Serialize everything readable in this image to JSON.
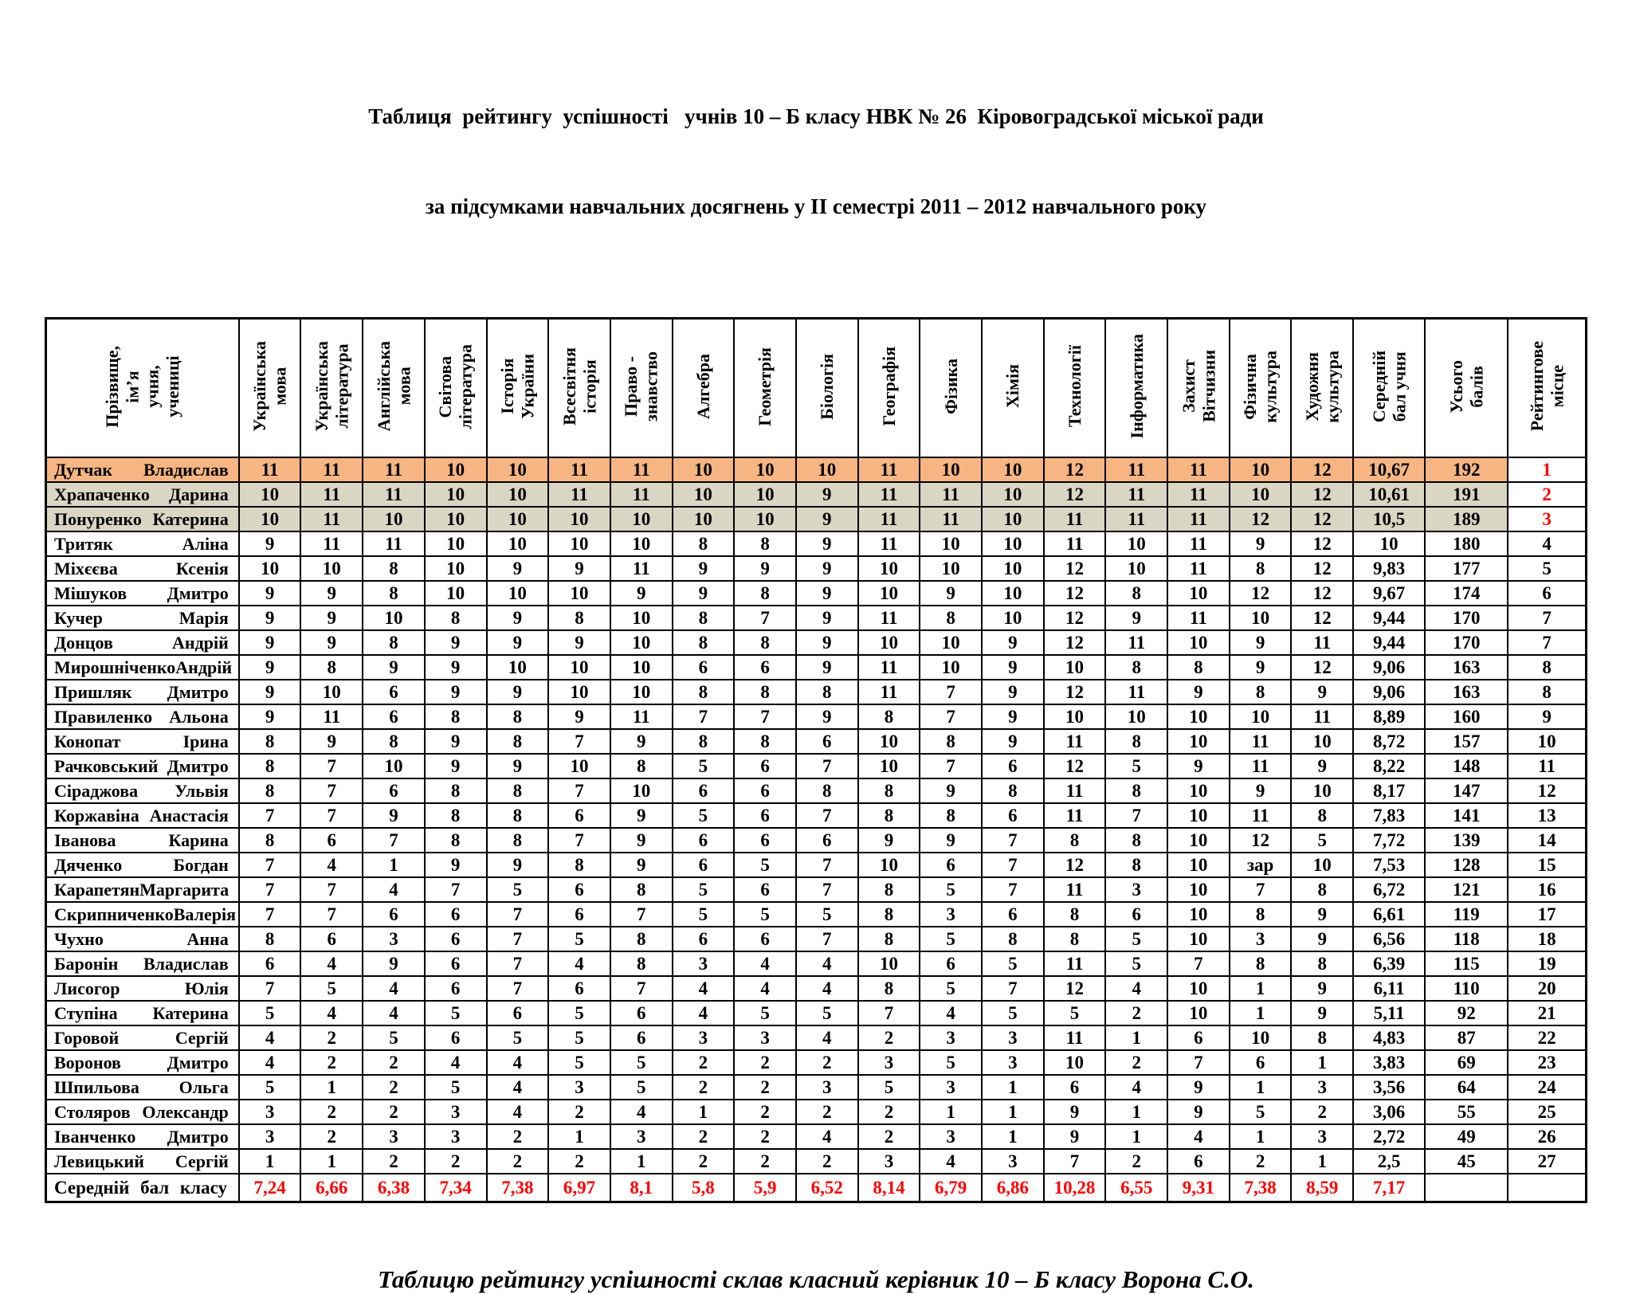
{
  "title_line1": "Таблиця  рейтингу  успішності   учнів 10 – Б класу НВК № 26  Кіровоградської міської ради",
  "title_line2": "за підсумками навчальних досягнень у ІІ семестрі 2011 – 2012 навчального року",
  "caption": "Таблицю рейтингу успішності склав класний керівник 10 – Б класу Ворона С.О.",
  "colors": {
    "first_place_row": "#F6B582",
    "second_third_place_row": "#D9D6C4",
    "accent_red": "#FF0000"
  },
  "table": {
    "name_header": "Прізвище,\nім’я\nучня,\nучениці",
    "subject_headers": [
      "Українська\nмова",
      "Українська\nлітература",
      "Англійська\nмова",
      "Світова\nлітература",
      "Історія\nУкраїни",
      "Всесвітня\nісторія",
      "Право -\nзнавство",
      "Алгебра",
      "Геометрія",
      "Біологія",
      "Географія",
      "Фізика",
      "Хімія",
      "Технології",
      "Інформатика",
      "Захист\nВітчизни",
      "Фізична\nкультура",
      "Художня\nкультура"
    ],
    "avg_header": "Середній\nбал учня",
    "total_header": "Усього\nбалів",
    "rank_header": "Рейтингове\nмісце",
    "rows": [
      {
        "name_last": "Дутчак",
        "name_first": "Владислав",
        "grades": [
          "11",
          "11",
          "11",
          "10",
          "10",
          "11",
          "11",
          "10",
          "10",
          "10",
          "11",
          "10",
          "10",
          "12",
          "11",
          "11",
          "10",
          "12"
        ],
        "avg": "10,67",
        "total": "192",
        "rank": "1",
        "highlight": "gold",
        "rank_red": true
      },
      {
        "name_last": "Храпаченко",
        "name_first": "Дарина",
        "grades": [
          "10",
          "11",
          "11",
          "10",
          "10",
          "11",
          "11",
          "10",
          "10",
          "9",
          "11",
          "11",
          "10",
          "12",
          "11",
          "11",
          "10",
          "12"
        ],
        "avg": "10,61",
        "total": "191",
        "rank": "2",
        "highlight": "silver",
        "rank_red": true
      },
      {
        "name_last": "Понуренко",
        "name_first": "Катерина",
        "grades": [
          "10",
          "11",
          "10",
          "10",
          "10",
          "10",
          "10",
          "10",
          "10",
          "9",
          "11",
          "11",
          "10",
          "11",
          "11",
          "11",
          "12",
          "12"
        ],
        "avg": "10,5",
        "total": "189",
        "rank": "3",
        "highlight": "silver",
        "rank_red": true
      },
      {
        "name_last": "Тритяк",
        "name_first": "Аліна",
        "grades": [
          "9",
          "11",
          "11",
          "10",
          "10",
          "10",
          "10",
          "8",
          "8",
          "9",
          "11",
          "10",
          "10",
          "11",
          "10",
          "11",
          "9",
          "12"
        ],
        "avg": "10",
        "total": "180",
        "rank": "4",
        "highlight": "",
        "rank_red": false
      },
      {
        "name_last": "Міхєєва",
        "name_first": "Ксенія",
        "grades": [
          "10",
          "10",
          "8",
          "10",
          "9",
          "9",
          "11",
          "9",
          "9",
          "9",
          "10",
          "10",
          "10",
          "12",
          "10",
          "11",
          "8",
          "12"
        ],
        "avg": "9,83",
        "total": "177",
        "rank": "5",
        "highlight": "",
        "rank_red": false
      },
      {
        "name_last": "Мішуков",
        "name_first": "Дмитро",
        "grades": [
          "9",
          "9",
          "8",
          "10",
          "10",
          "10",
          "9",
          "9",
          "8",
          "9",
          "10",
          "9",
          "10",
          "12",
          "8",
          "10",
          "12",
          "12"
        ],
        "avg": "9,67",
        "total": "174",
        "rank": "6",
        "highlight": "",
        "rank_red": false
      },
      {
        "name_last": "Кучер",
        "name_first": "Марія",
        "grades": [
          "9",
          "9",
          "10",
          "8",
          "9",
          "8",
          "10",
          "8",
          "7",
          "9",
          "11",
          "8",
          "10",
          "12",
          "9",
          "11",
          "10",
          "12"
        ],
        "avg": "9,44",
        "total": "170",
        "rank": "7",
        "highlight": "",
        "rank_red": false
      },
      {
        "name_last": "Донцов",
        "name_first": "Андрій",
        "grades": [
          "9",
          "9",
          "8",
          "9",
          "9",
          "9",
          "10",
          "8",
          "8",
          "9",
          "10",
          "10",
          "9",
          "12",
          "11",
          "10",
          "9",
          "11"
        ],
        "avg": "9,44",
        "total": "170",
        "rank": "7",
        "highlight": "",
        "rank_red": false
      },
      {
        "name_last": "Мирошніченко",
        "name_first": "Андрій",
        "grades": [
          "9",
          "8",
          "9",
          "9",
          "10",
          "10",
          "10",
          "6",
          "6",
          "9",
          "11",
          "10",
          "9",
          "10",
          "8",
          "8",
          "9",
          "12"
        ],
        "avg": "9,06",
        "total": "163",
        "rank": "8",
        "highlight": "",
        "rank_red": false
      },
      {
        "name_last": "Пришляк",
        "name_first": "Дмитро",
        "grades": [
          "9",
          "10",
          "6",
          "9",
          "9",
          "10",
          "10",
          "8",
          "8",
          "8",
          "11",
          "7",
          "9",
          "12",
          "11",
          "9",
          "8",
          "9"
        ],
        "avg": "9,06",
        "total": "163",
        "rank": "8",
        "highlight": "",
        "rank_red": false
      },
      {
        "name_last": "Правиленко",
        "name_first": "Альона",
        "grades": [
          "9",
          "11",
          "6",
          "8",
          "8",
          "9",
          "11",
          "7",
          "7",
          "9",
          "8",
          "7",
          "9",
          "10",
          "10",
          "10",
          "10",
          "11"
        ],
        "avg": "8,89",
        "total": "160",
        "rank": "9",
        "highlight": "",
        "rank_red": false
      },
      {
        "name_last": "Конопат",
        "name_first": "Ірина",
        "grades": [
          "8",
          "9",
          "8",
          "9",
          "8",
          "7",
          "9",
          "8",
          "8",
          "6",
          "10",
          "8",
          "9",
          "11",
          "8",
          "10",
          "11",
          "10"
        ],
        "avg": "8,72",
        "total": "157",
        "rank": "10",
        "highlight": "",
        "rank_red": false
      },
      {
        "name_last": "Рачковський",
        "name_first": "Дмитро",
        "grades": [
          "8",
          "7",
          "10",
          "9",
          "9",
          "10",
          "8",
          "5",
          "6",
          "7",
          "10",
          "7",
          "6",
          "12",
          "5",
          "9",
          "11",
          "9"
        ],
        "avg": "8,22",
        "total": "148",
        "rank": "11",
        "highlight": "",
        "rank_red": false
      },
      {
        "name_last": "Сіраджова",
        "name_first": "Ульвія",
        "grades": [
          "8",
          "7",
          "6",
          "8",
          "8",
          "7",
          "10",
          "6",
          "6",
          "8",
          "8",
          "9",
          "8",
          "11",
          "8",
          "10",
          "9",
          "10"
        ],
        "avg": "8,17",
        "total": "147",
        "rank": "12",
        "highlight": "",
        "rank_red": false
      },
      {
        "name_last": "Коржавіна",
        "name_first": "Анастасія",
        "grades": [
          "7",
          "7",
          "9",
          "8",
          "8",
          "6",
          "9",
          "5",
          "6",
          "7",
          "8",
          "8",
          "6",
          "11",
          "7",
          "10",
          "11",
          "8"
        ],
        "avg": "7,83",
        "total": "141",
        "rank": "13",
        "highlight": "",
        "rank_red": false
      },
      {
        "name_last": "Іванова",
        "name_first": "Карина",
        "grades": [
          "8",
          "6",
          "7",
          "8",
          "8",
          "7",
          "9",
          "6",
          "6",
          "6",
          "9",
          "9",
          "7",
          "8",
          "8",
          "10",
          "12",
          "5"
        ],
        "avg": "7,72",
        "total": "139",
        "rank": "14",
        "highlight": "",
        "rank_red": false
      },
      {
        "name_last": "Дяченко",
        "name_first": "Богдан",
        "grades": [
          "7",
          "4",
          "1",
          "9",
          "9",
          "8",
          "9",
          "6",
          "5",
          "7",
          "10",
          "6",
          "7",
          "12",
          "8",
          "10",
          "зар",
          "10"
        ],
        "avg": "7,53",
        "total": "128",
        "rank": "15",
        "highlight": "",
        "rank_red": false
      },
      {
        "name_last": "Карапетян",
        "name_first": "Маргарита",
        "grades": [
          "7",
          "7",
          "4",
          "7",
          "5",
          "6",
          "8",
          "5",
          "6",
          "7",
          "8",
          "5",
          "7",
          "11",
          "3",
          "10",
          "7",
          "8"
        ],
        "avg": "6,72",
        "total": "121",
        "rank": "16",
        "highlight": "",
        "rank_red": false
      },
      {
        "name_last": "Скрипниченко",
        "name_first": "Валерія",
        "grades": [
          "7",
          "7",
          "6",
          "6",
          "7",
          "6",
          "7",
          "5",
          "5",
          "5",
          "8",
          "3",
          "6",
          "8",
          "6",
          "10",
          "8",
          "9"
        ],
        "avg": "6,61",
        "total": "119",
        "rank": "17",
        "highlight": "",
        "rank_red": false
      },
      {
        "name_last": "Чухно",
        "name_first": "Анна",
        "grades": [
          "8",
          "6",
          "3",
          "6",
          "7",
          "5",
          "8",
          "6",
          "6",
          "7",
          "8",
          "5",
          "8",
          "8",
          "5",
          "10",
          "3",
          "9"
        ],
        "avg": "6,56",
        "total": "118",
        "rank": "18",
        "highlight": "",
        "rank_red": false
      },
      {
        "name_last": "Баронін",
        "name_first": "Владислав",
        "grades": [
          "6",
          "4",
          "9",
          "6",
          "7",
          "4",
          "8",
          "3",
          "4",
          "4",
          "10",
          "6",
          "5",
          "11",
          "5",
          "7",
          "8",
          "8"
        ],
        "avg": "6,39",
        "total": "115",
        "rank": "19",
        "highlight": "",
        "rank_red": false
      },
      {
        "name_last": "Лисогор",
        "name_first": "Юлія",
        "grades": [
          "7",
          "5",
          "4",
          "6",
          "7",
          "6",
          "7",
          "4",
          "4",
          "4",
          "8",
          "5",
          "7",
          "12",
          "4",
          "10",
          "1",
          "9"
        ],
        "avg": "6,11",
        "total": "110",
        "rank": "20",
        "highlight": "",
        "rank_red": false
      },
      {
        "name_last": "Ступіна",
        "name_first": "Катерина",
        "grades": [
          "5",
          "4",
          "4",
          "5",
          "6",
          "5",
          "6",
          "4",
          "5",
          "5",
          "7",
          "4",
          "5",
          "5",
          "2",
          "10",
          "1",
          "9"
        ],
        "avg": "5,11",
        "total": "92",
        "rank": "21",
        "highlight": "",
        "rank_red": false
      },
      {
        "name_last": "Горовой",
        "name_first": "Сергій",
        "grades": [
          "4",
          "2",
          "5",
          "6",
          "5",
          "5",
          "6",
          "3",
          "3",
          "4",
          "2",
          "3",
          "3",
          "11",
          "1",
          "6",
          "10",
          "8"
        ],
        "avg": "4,83",
        "total": "87",
        "rank": "22",
        "highlight": "",
        "rank_red": false
      },
      {
        "name_last": "Воронов",
        "name_first": "Дмитро",
        "grades": [
          "4",
          "2",
          "2",
          "4",
          "4",
          "5",
          "5",
          "2",
          "2",
          "2",
          "3",
          "5",
          "3",
          "10",
          "2",
          "7",
          "6",
          "1"
        ],
        "avg": "3,83",
        "total": "69",
        "rank": "23",
        "highlight": "",
        "rank_red": false
      },
      {
        "name_last": "Шпильова",
        "name_first": "Ольга",
        "grades": [
          "5",
          "1",
          "2",
          "5",
          "4",
          "3",
          "5",
          "2",
          "2",
          "3",
          "5",
          "3",
          "1",
          "6",
          "4",
          "9",
          "1",
          "3"
        ],
        "avg": "3,56",
        "total": "64",
        "rank": "24",
        "highlight": "",
        "rank_red": false
      },
      {
        "name_last": "Столяров",
        "name_first": "Олександр",
        "grades": [
          "3",
          "2",
          "2",
          "3",
          "4",
          "2",
          "4",
          "1",
          "2",
          "2",
          "2",
          "1",
          "1",
          "9",
          "1",
          "9",
          "5",
          "2"
        ],
        "avg": "3,06",
        "total": "55",
        "rank": "25",
        "highlight": "",
        "rank_red": false
      },
      {
        "name_last": "Іванченко",
        "name_first": "Дмитро",
        "grades": [
          "3",
          "2",
          "3",
          "3",
          "2",
          "1",
          "3",
          "2",
          "2",
          "4",
          "2",
          "3",
          "1",
          "9",
          "1",
          "4",
          "1",
          "3"
        ],
        "avg": "2,72",
        "total": "49",
        "rank": "26",
        "highlight": "",
        "rank_red": false
      },
      {
        "name_last": "Левицький",
        "name_first": "Сергій",
        "grades": [
          "1",
          "1",
          "2",
          "2",
          "2",
          "2",
          "1",
          "2",
          "2",
          "2",
          "3",
          "4",
          "3",
          "7",
          "2",
          "6",
          "2",
          "1"
        ],
        "avg": "2,5",
        "total": "45",
        "rank": "27",
        "highlight": "",
        "rank_red": false
      }
    ],
    "summary": {
      "label": "Середній бал класу",
      "values": [
        "7,24",
        "6,66",
        "6,38",
        "7,34",
        "7,38",
        "6,97",
        "8,1",
        "5,8",
        "5,9",
        "6,52",
        "8,14",
        "6,79",
        "6,86",
        "10,28",
        "6,55",
        "9,31",
        "7,38",
        "8,59"
      ],
      "avg": "7,17",
      "total": "",
      "rank": ""
    }
  }
}
